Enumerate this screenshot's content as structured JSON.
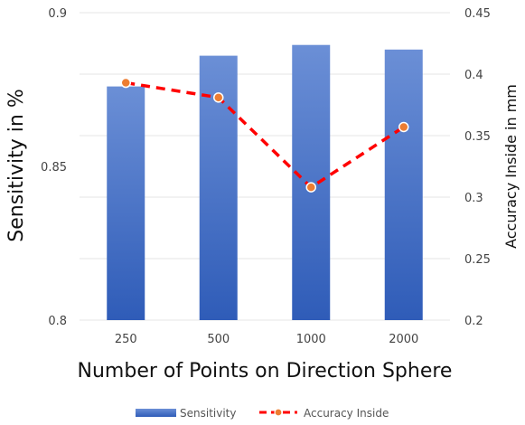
{
  "chart_data": {
    "type": "bar",
    "categories": [
      "250",
      "500",
      "1000",
      "2000"
    ],
    "xlabel": "Number of Points on Direction Sphere",
    "ylabel": "Sensitivity in %",
    "y2label": "Accuracy Inside in mm",
    "ylim": [
      0.8,
      0.9
    ],
    "y2lim": [
      0.2,
      0.45
    ],
    "yticks": [
      "0.8",
      "0.85",
      "0.9"
    ],
    "y2ticks": [
      "0.2",
      "0.25",
      "0.3",
      "0.35",
      "0.4",
      "0.45"
    ],
    "grid": true,
    "legend_position": "bottom",
    "series": [
      {
        "name": "Sensitivity",
        "type": "bar",
        "axis": "left",
        "color": "#4472c4",
        "values": [
          0.876,
          0.886,
          0.8895,
          0.888
        ]
      },
      {
        "name": "Accuracy Inside",
        "type": "line",
        "axis": "right",
        "color": "#ff0000",
        "marker_color": "#ed7d31",
        "style": "dashed",
        "values": [
          0.393,
          0.381,
          0.308,
          0.357
        ]
      }
    ]
  }
}
